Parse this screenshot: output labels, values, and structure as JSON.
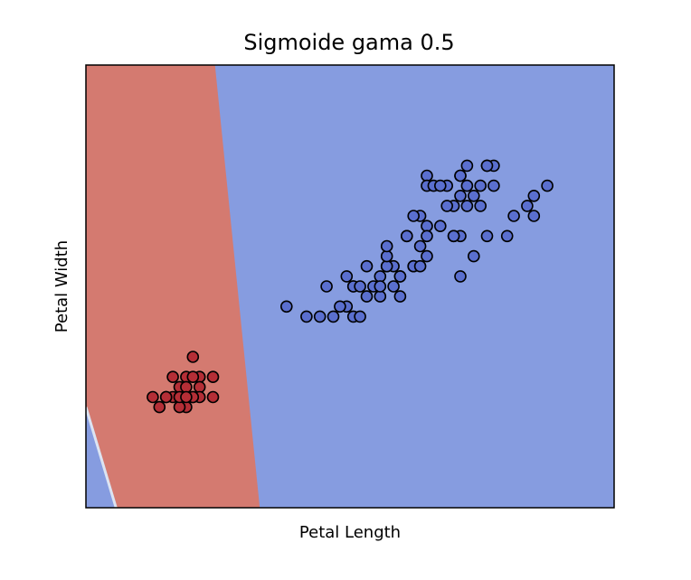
{
  "chart_data": {
    "type": "scatter",
    "title": "Sigmoide gama 0.5",
    "xlabel": "Petal Length",
    "ylabel": "Petal Width",
    "xticks": [],
    "yticks": [],
    "xlim": [
      0,
      7.9
    ],
    "ylim": [
      -0.9,
      3.5
    ],
    "grid": false,
    "legend": "none",
    "colors": {
      "region_class_0": "#d47a70",
      "region_class_1": "#869ce0",
      "region_sliver": "#dce4f2",
      "point_class_0": "#b52e36",
      "point_class_1": "#5a6fcf",
      "point_edge": "#000000"
    },
    "regions": [
      {
        "class": 0,
        "polygon": [
          [
            0,
            3.5
          ],
          [
            1.93,
            3.5
          ],
          [
            2.6,
            -0.9
          ],
          [
            0.45,
            -0.9
          ],
          [
            0,
            0.1
          ]
        ]
      },
      {
        "class": 1,
        "polygon": [
          [
            0,
            0.1
          ],
          [
            0.45,
            -0.9
          ],
          [
            0,
            -0.9
          ]
        ]
      }
    ],
    "series": [
      {
        "class": 0,
        "points": [
          [
            1.4,
            0.2
          ],
          [
            1.3,
            0.2
          ],
          [
            1.5,
            0.2
          ],
          [
            1.7,
            0.4
          ],
          [
            1.4,
            0.3
          ],
          [
            1.5,
            0.1
          ],
          [
            1.6,
            0.2
          ],
          [
            1.4,
            0.1
          ],
          [
            1.1,
            0.1
          ],
          [
            1.2,
            0.2
          ],
          [
            1.3,
            0.4
          ],
          [
            1.7,
            0.3
          ],
          [
            1.5,
            0.4
          ],
          [
            1.7,
            0.2
          ],
          [
            1.5,
            0.3
          ],
          [
            1.0,
            0.2
          ],
          [
            1.9,
            0.2
          ],
          [
            1.6,
            0.4
          ],
          [
            1.9,
            0.4
          ],
          [
            1.6,
            0.6
          ],
          [
            1.6,
            0.2
          ],
          [
            1.4,
            0.2
          ],
          [
            1.2,
            0.2
          ],
          [
            1.5,
            0.2
          ]
        ]
      },
      {
        "class": 1,
        "points": [
          [
            4.7,
            1.4
          ],
          [
            4.5,
            1.5
          ],
          [
            4.9,
            1.5
          ],
          [
            4.0,
            1.3
          ],
          [
            4.6,
            1.5
          ],
          [
            3.3,
            1.0
          ],
          [
            4.6,
            1.3
          ],
          [
            3.9,
            1.4
          ],
          [
            3.5,
            1.0
          ],
          [
            4.2,
            1.5
          ],
          [
            4.0,
            1.0
          ],
          [
            4.7,
            1.4
          ],
          [
            3.6,
            1.3
          ],
          [
            4.4,
            1.4
          ],
          [
            4.5,
            1.5
          ],
          [
            4.1,
            1.0
          ],
          [
            3.9,
            1.1
          ],
          [
            4.8,
            1.8
          ],
          [
            4.0,
            1.3
          ],
          [
            4.9,
            1.5
          ],
          [
            4.7,
            1.2
          ],
          [
            4.3,
            1.3
          ],
          [
            5.0,
            1.7
          ],
          [
            3.8,
            1.1
          ],
          [
            3.7,
            1.0
          ],
          [
            5.1,
            1.6
          ],
          [
            4.5,
            1.6
          ],
          [
            4.4,
            1.2
          ],
          [
            4.1,
            1.3
          ],
          [
            4.4,
            1.3
          ],
          [
            3.0,
            1.1
          ],
          [
            4.2,
            1.2
          ],
          [
            6.0,
            2.5
          ],
          [
            5.1,
            1.9
          ],
          [
            5.9,
            2.1
          ],
          [
            5.6,
            1.8
          ],
          [
            5.8,
            2.2
          ],
          [
            6.6,
            2.1
          ],
          [
            4.5,
            1.7
          ],
          [
            6.3,
            1.8
          ],
          [
            6.1,
            2.5
          ],
          [
            5.3,
            1.9
          ],
          [
            5.5,
            2.1
          ],
          [
            5.0,
            2.0
          ],
          [
            5.1,
            2.4
          ],
          [
            5.5,
            1.8
          ],
          [
            6.7,
            2.2
          ],
          [
            6.9,
            2.3
          ],
          [
            5.0,
            1.5
          ],
          [
            5.7,
            2.3
          ],
          [
            4.9,
            2.0
          ],
          [
            6.7,
            2.0
          ],
          [
            4.8,
            1.8
          ],
          [
            5.7,
            2.1
          ],
          [
            6.0,
            1.8
          ],
          [
            5.6,
            2.4
          ],
          [
            5.8,
            1.6
          ],
          [
            6.4,
            2.0
          ],
          [
            5.6,
            1.4
          ],
          [
            6.1,
            2.3
          ],
          [
            5.5,
            1.8
          ],
          [
            5.4,
            2.1
          ],
          [
            5.6,
            2.4
          ],
          [
            5.1,
            2.3
          ],
          [
            5.9,
            2.3
          ],
          [
            5.7,
            2.5
          ],
          [
            5.2,
            2.3
          ],
          [
            5.4,
            2.3
          ],
          [
            5.1,
            1.8
          ],
          [
            5.3,
            2.3
          ],
          [
            6.0,
            2.5
          ],
          [
            5.6,
            2.2
          ]
        ]
      }
    ]
  }
}
